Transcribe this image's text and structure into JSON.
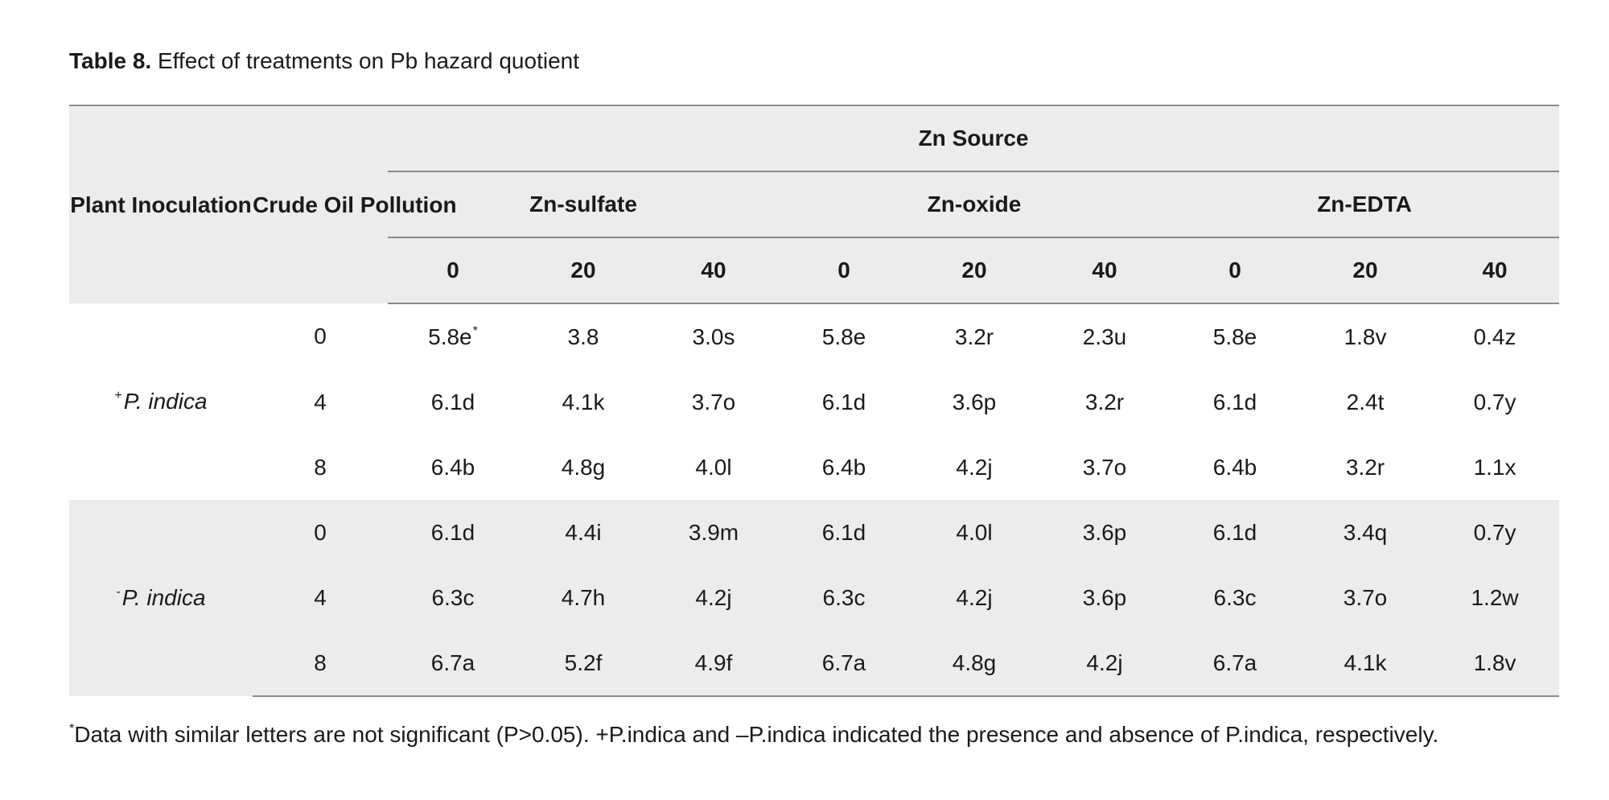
{
  "caption": {
    "label": "Table 8.",
    "text": "Effect of treatments on Pb hazard quotient"
  },
  "header": {
    "plant_inoculation": "Plant Inoculation",
    "crude_oil_pollution": "Crude Oil Pollution",
    "zn_source": "Zn Source",
    "zn_sulfate": "Zn-sulfate",
    "zn_oxide": "Zn-oxide",
    "zn_edta": "Zn-EDTA",
    "levels": [
      "0",
      "20",
      "40",
      "0",
      "20",
      "40",
      "0",
      "20",
      "40"
    ]
  },
  "groups": [
    {
      "sign": "+",
      "name": "P. indica",
      "rows": [
        {
          "pollution": "0",
          "values": [
            "5.8e",
            "3.8",
            "3.0s",
            "5.8e",
            "3.2r",
            "2.3u",
            "5.8e",
            "1.8v",
            "0.4z"
          ]
        },
        {
          "pollution": "4",
          "values": [
            "6.1d",
            "4.1k",
            "3.7o",
            "6.1d",
            "3.6p",
            "3.2r",
            "6.1d",
            "2.4t",
            "0.7y"
          ]
        },
        {
          "pollution": "8",
          "values": [
            "6.4b",
            "4.8g",
            "4.0l",
            "6.4b",
            "4.2j",
            "3.7o",
            "6.4b",
            "3.2r",
            "1.1x"
          ]
        }
      ]
    },
    {
      "sign": "-",
      "name": "P. indica",
      "rows": [
        {
          "pollution": "0",
          "values": [
            "6.1d",
            "4.4i",
            "3.9m",
            "6.1d",
            "4.0l",
            "3.6p",
            "6.1d",
            "3.4q",
            "0.7y"
          ]
        },
        {
          "pollution": "4",
          "values": [
            "6.3c",
            "4.7h",
            "4.2j",
            "6.3c",
            "4.2j",
            "3.6p",
            "6.3c",
            "3.7o",
            "1.2w"
          ]
        },
        {
          "pollution": "8",
          "values": [
            "6.7a",
            "5.2f",
            "4.9f",
            "6.7a",
            "4.8g",
            "4.2j",
            "6.7a",
            "4.1k",
            "1.8v"
          ]
        }
      ]
    }
  ],
  "first_cell_marker": "*",
  "footnote": {
    "marker": "*",
    "text": "Data with similar letters are not significant (P>0.05). +P.indica and –P.indica indicated the presence and absence of P.indica, respectively."
  }
}
